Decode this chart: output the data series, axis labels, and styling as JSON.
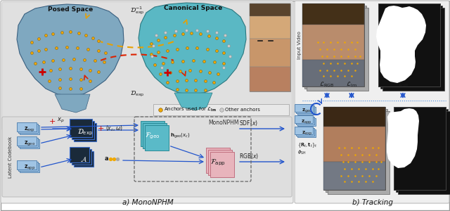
{
  "title_a": "a) MonoNPHM",
  "title_b": "b) Tracking",
  "fig_bg": "#ffffff",
  "panel_bg": "#e8e8e8",
  "arch_bg": "#dedede",
  "posed_space_label": "Posed Space",
  "canonical_space_label": "Canonical Space",
  "legend_anchor_lm": "Anchors used for $\\mathcal{L}_{\\mathbf{lm}}$",
  "legend_other": "Other anchors",
  "label_D_exp_inv": "$\\mathcal{D}^{-1}_{\\mathrm{exp}}$",
  "label_D_exp": "$\\mathcal{D}_{\\mathrm{exp}}$",
  "label_xp": "$x_p$",
  "label_xc_omega": "$(x_c, \\omega)$",
  "label_zexp": "$\\mathbf{z}_{\\mathrm{exp}}$",
  "label_zgeo": "$\\mathbf{z}_{\\mathrm{geo}}$",
  "label_zapp": "$\\mathbf{z}_{\\mathrm{app}}$",
  "label_Dexp_box": "$\\mathcal{D}_{\\mathrm{exp}}$",
  "label_A": "$\\mathcal{A}$",
  "label_a": "$\\mathbf{a}$",
  "label_Fgeo": "$\\mathcal{F}_{\\mathrm{geo}}$",
  "label_Fapp": "$\\mathcal{F}_{\\mathrm{app}}$",
  "label_hgeo": "$\\mathbf{h}_{\\mathrm{geo}}(x_c)$",
  "label_SDF": "$\\mathrm{SDF}(x)$",
  "label_RGB": "$\\mathrm{RGB}(x)$",
  "label_MonoNPHM": "MonoNPHM",
  "label_latent": "Latent Codebook",
  "label_LRGB": "$\\mathcal{L}_{\\mathrm{RGB}}$",
  "label_Llm": "$\\mathcal{L}_{\\mathrm{lm}}$",
  "label_Lsil": "$\\mathcal{L}_{\\mathrm{sil}}$",
  "label_InputVideo": "Input Video",
  "label_zgeo2": "$\\mathbf{z}_{\\mathrm{geo}}$",
  "label_zapp2": "$\\mathbf{z}_{\\mathrm{app}}$",
  "label_zexp2": "$\\mathbf{z}_{\\mathrm{exp}}$",
  "label_Rt": "$\\{\\mathbf{R}_t, \\mathbf{t}_t\\}_t$",
  "label_phi": "$\\phi_{\\mathrm{SH}}$",
  "color_blue_box": "#7aabdc",
  "color_pink_box": "#e8b4bc",
  "color_teal_box": "#5abac8",
  "color_dark_box": "#1a2a3a",
  "color_arrow": "#2255cc",
  "color_red": "#cc0000",
  "color_orange": "#e8a000",
  "color_dashed_orange": "#e8a000",
  "color_dashed_red": "#dd2200"
}
